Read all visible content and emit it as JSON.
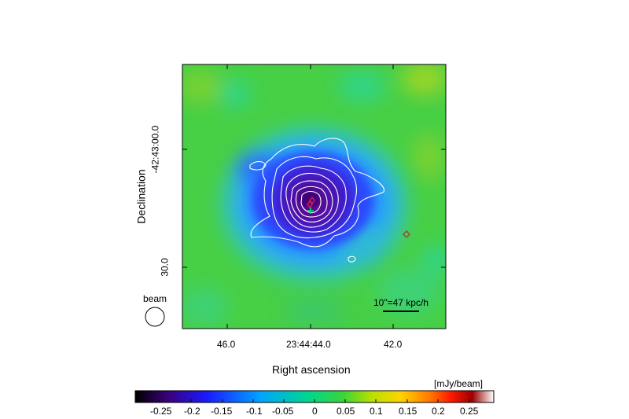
{
  "figure": {
    "x_axis": {
      "label": "Right ascension",
      "ticks": [
        "46.0",
        "23:44:44.0",
        "42.0"
      ]
    },
    "y_axis": {
      "label": "Declination",
      "ticks": [
        "-42:43:00.0",
        "30.0"
      ]
    },
    "beam_label": "beam",
    "scale_bar_label": "10\"=47 kpc/h",
    "colorbar": {
      "unit": "[mJy/beam]",
      "ticks": [
        "-0.25",
        "-0.2",
        "-0.15",
        "-0.1",
        "-0.05",
        "0",
        "0.05",
        "0.1",
        "0.15",
        "0.2",
        "0.25"
      ],
      "range": [
        -0.28,
        0.28
      ],
      "colormap": [
        "#000000",
        "#3a007a",
        "#1a1aff",
        "#00a5ff",
        "#00d68f",
        "#3ad43a",
        "#b9e000",
        "#ffd300",
        "#ff7a00",
        "#ff1a00",
        "#9a0000",
        "#ffffff"
      ]
    }
  }
}
